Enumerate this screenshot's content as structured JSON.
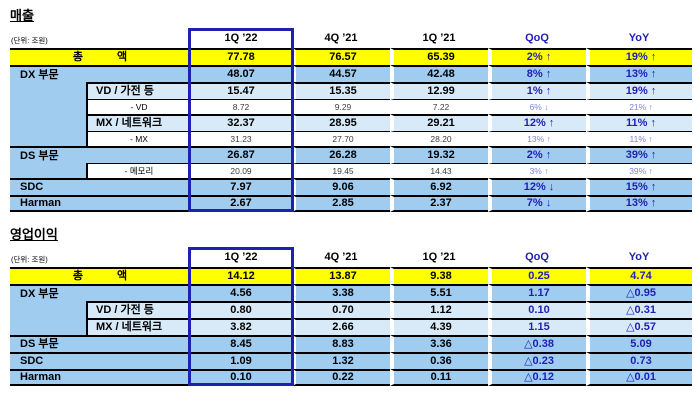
{
  "colors": {
    "total_row_bg": "#ffff00",
    "division_row_bg": "#a0ccf0",
    "segment_row_bg": "#d8eaf8",
    "subrow_bg": "#ffffff",
    "change_text": "#1f1fb4",
    "subrow_change_text": "#7f81de",
    "subrow_value_text": "#3c3c3c",
    "highlight_border": "#2020af",
    "border": "#000000"
  },
  "tables": [
    {
      "title": "매출",
      "unit_note": "(단위: 조원)",
      "columns": [
        "1Q ’22",
        "4Q ’21",
        "1Q ’21",
        "QoQ",
        "YoY"
      ],
      "rows": [
        {
          "label": "총 액",
          "spread": true,
          "label_mode": "full",
          "style": "total",
          "values": [
            "77.78",
            "76.57",
            "65.39"
          ],
          "qoq": "2% ↑",
          "yoy": "19% ↑"
        },
        {
          "label": "DX 부문",
          "label_mode": "group",
          "group_span": 5,
          "style": "main",
          "values": [
            "48.07",
            "44.57",
            "42.48"
          ],
          "qoq": "8% ↑",
          "yoy": "13% ↑"
        },
        {
          "label": "VD / 가전 등",
          "label_mode": "sub",
          "style": "subhead",
          "values": [
            "15.47",
            "15.35",
            "12.99"
          ],
          "qoq": "1% ↑",
          "yoy": "19% ↑"
        },
        {
          "label": "- VD",
          "label_mode": "sub",
          "style": "subrow",
          "values": [
            "8.72",
            "9.29",
            "7.22"
          ],
          "qoq": "6% ↓",
          "yoy": "21% ↑"
        },
        {
          "label": "MX / 네트워크",
          "label_mode": "sub",
          "style": "subhead",
          "values": [
            "32.37",
            "28.95",
            "29.21"
          ],
          "qoq": "12% ↑",
          "yoy": "11% ↑"
        },
        {
          "label": "- MX",
          "label_mode": "sub",
          "style": "subrow",
          "values": [
            "31.23",
            "27.70",
            "28.20"
          ],
          "qoq": "13% ↑",
          "yoy": "11% ↑"
        },
        {
          "label": "DS 부문",
          "label_mode": "group",
          "group_span": 2,
          "style": "main",
          "values": [
            "26.87",
            "26.28",
            "19.32"
          ],
          "qoq": "2% ↑",
          "yoy": "39% ↑"
        },
        {
          "label": "- 메모리",
          "label_mode": "sub",
          "style": "subrow",
          "values": [
            "20.09",
            "19.45",
            "14.43"
          ],
          "qoq": "3% ↑",
          "yoy": "39% ↑"
        },
        {
          "label": "SDC",
          "label_mode": "full",
          "style": "main",
          "values": [
            "7.97",
            "9.06",
            "6.92"
          ],
          "qoq": "12% ↓",
          "yoy": "15% ↑"
        },
        {
          "label": "Harman",
          "label_mode": "full",
          "style": "main",
          "values": [
            "2.67",
            "2.85",
            "2.37"
          ],
          "qoq": "7% ↓",
          "yoy": "13% ↑"
        }
      ]
    },
    {
      "title": "영업이익",
      "unit_note": "(단위: 조원)",
      "columns": [
        "1Q ’22",
        "4Q ’21",
        "1Q ’21",
        "QoQ",
        "YoY"
      ],
      "rows": [
        {
          "label": "총 액",
          "spread": true,
          "label_mode": "full",
          "style": "total",
          "values": [
            "14.12",
            "13.87",
            "9.38"
          ],
          "qoq": "0.25",
          "yoy": "4.74"
        },
        {
          "label": "DX 부문",
          "label_mode": "group",
          "group_span": 3,
          "style": "main",
          "values": [
            "4.56",
            "3.38",
            "5.51"
          ],
          "qoq": "1.17",
          "yoy": "△0.95"
        },
        {
          "label": "VD / 가전 등",
          "label_mode": "sub",
          "style": "subhead",
          "values": [
            "0.80",
            "0.70",
            "1.12"
          ],
          "qoq": "0.10",
          "yoy": "△0.31"
        },
        {
          "label": "MX / 네트워크",
          "label_mode": "sub",
          "style": "subhead",
          "values": [
            "3.82",
            "2.66",
            "4.39"
          ],
          "qoq": "1.15",
          "yoy": "△0.57"
        },
        {
          "label": "DS 부문",
          "label_mode": "full",
          "style": "main",
          "values": [
            "8.45",
            "8.83",
            "3.36"
          ],
          "qoq": "△0.38",
          "yoy": "5.09"
        },
        {
          "label": "SDC",
          "label_mode": "full",
          "style": "main",
          "values": [
            "1.09",
            "1.32",
            "0.36"
          ],
          "qoq": "△0.23",
          "yoy": "0.73"
        },
        {
          "label": "Harman",
          "label_mode": "full",
          "style": "main",
          "values": [
            "0.10",
            "0.22",
            "0.11"
          ],
          "qoq": "△0.12",
          "yoy": "△0.01"
        }
      ]
    }
  ]
}
